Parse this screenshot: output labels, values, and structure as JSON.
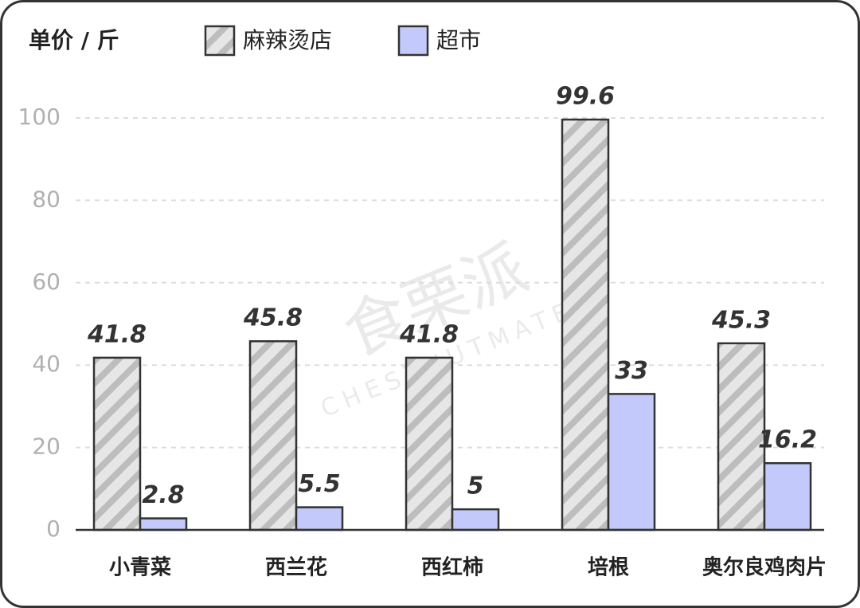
{
  "chart_data": {
    "type": "bar",
    "y_axis_label": "单价 / 斤",
    "categories": [
      "小青菜",
      "西兰花",
      "西红柿",
      "培根",
      "奥尔良鸡肉片"
    ],
    "series": [
      {
        "name": "麻辣烫店",
        "color": "#e6e6e6",
        "pattern": "hatch",
        "values": [
          41.8,
          45.8,
          41.8,
          99.6,
          45.3
        ]
      },
      {
        "name": "超市",
        "color": "#c3cafb",
        "values": [
          2.8,
          5.5,
          5,
          33,
          16.2
        ]
      }
    ],
    "ylim": [
      0,
      100
    ],
    "yticks": [
      0,
      20,
      40,
      60,
      80,
      100
    ],
    "grid": true,
    "legend": "top",
    "watermark": {
      "text": "食栗派",
      "subtext": "CHESTNUTMATES"
    }
  }
}
